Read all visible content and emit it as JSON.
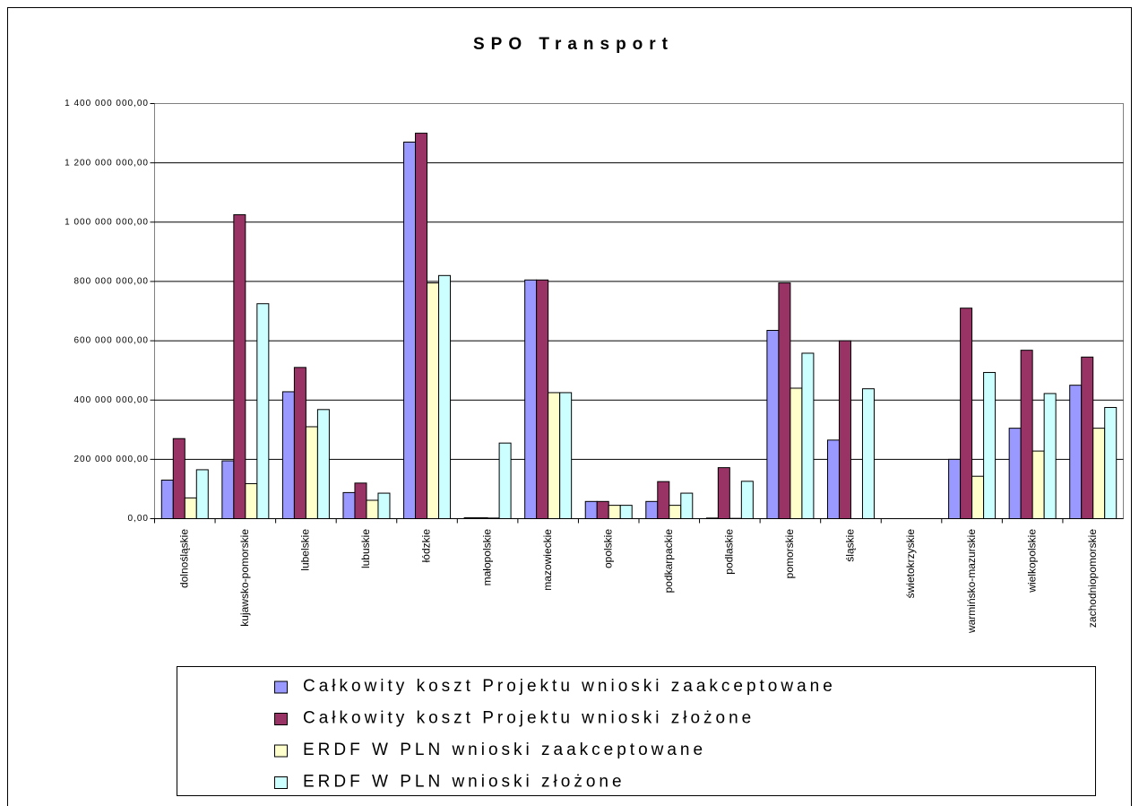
{
  "chart_data": {
    "type": "bar",
    "title": "SPO Transport",
    "categories": [
      "dolnośląskie",
      "kujawsko-pomorskie",
      "lubelskie",
      "lubuskie",
      "łódzkie",
      "małopolskie",
      "mazowieckie",
      "opolskie",
      "podkarpackie",
      "podlaskie",
      "pomorskie",
      "śląskie",
      "świetokrzyskie",
      "warmińsko-mazurskie",
      "wielkopolskie",
      "zachodniopomorskie"
    ],
    "series": [
      {
        "name": "Całkowity koszt Projektu wnioski zaakceptowane",
        "color": "#9999ff",
        "values": [
          130000000,
          195000000,
          428000000,
          88000000,
          1270000000,
          3000000,
          805000000,
          58000000,
          58000000,
          2000000,
          635000000,
          265000000,
          0,
          200000000,
          305000000,
          450000000
        ]
      },
      {
        "name": "Całkowity koszt Projektu wnioski złożone",
        "color": "#993366",
        "values": [
          270000000,
          1025000000,
          510000000,
          120000000,
          1300000000,
          3000000,
          805000000,
          58000000,
          125000000,
          172000000,
          795000000,
          600000000,
          0,
          710000000,
          568000000,
          545000000
        ]
      },
      {
        "name": "ERDF W PLN wnioski zaakceptowane",
        "color": "#ffffcc",
        "values": [
          70000000,
          118000000,
          310000000,
          62000000,
          795000000,
          2000000,
          425000000,
          45000000,
          45000000,
          1000000,
          440000000,
          0,
          0,
          143000000,
          228000000,
          305000000
        ]
      },
      {
        "name": "ERDF W PLN wnioski złożone",
        "color": "#ccffff",
        "values": [
          165000000,
          725000000,
          368000000,
          86000000,
          820000000,
          255000000,
          425000000,
          45000000,
          86000000,
          126000000,
          558000000,
          438000000,
          0,
          493000000,
          422000000,
          375000000
        ]
      }
    ],
    "ylim": [
      0,
      1400000000
    ],
    "yticks": [
      {
        "value": 0,
        "label": "0,00"
      },
      {
        "value": 200000000,
        "label": "200 000 000,00"
      },
      {
        "value": 400000000,
        "label": "400 000 000,00"
      },
      {
        "value": 600000000,
        "label": "600 000 000,00"
      },
      {
        "value": 800000000,
        "label": "800 000 000,00"
      },
      {
        "value": 1000000000,
        "label": "1 000 000 000,00"
      },
      {
        "value": 1200000000,
        "label": "1 200 000 000,00"
      },
      {
        "value": 1400000000,
        "label": "1 400 000 000,00"
      }
    ],
    "grid": true,
    "legend": "bottom"
  }
}
